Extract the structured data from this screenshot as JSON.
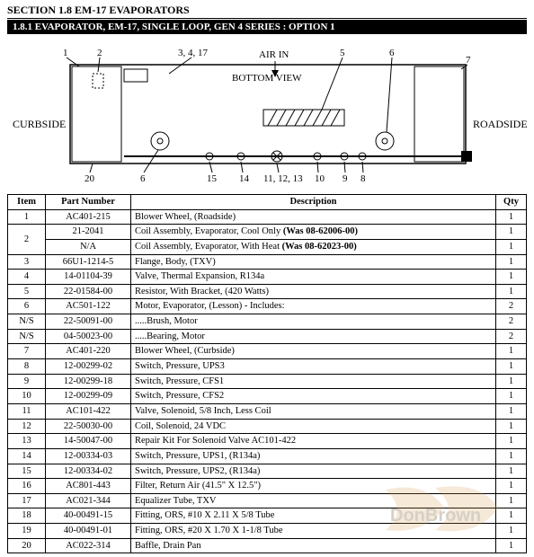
{
  "section_header": "SECTION 1.8 EM-17 EVAPORATORS",
  "subsection_header": "1.8.1    EVAPORATOR, EM-17, SINGLE LOOP, GEN 4 SERIES : OPTION 1",
  "diagram": {
    "label_air_in": "AIR IN",
    "label_bottom_view": "BOTTOM VIEW",
    "label_curbside": "CURBSIDE",
    "label_roadside": "ROADSIDE",
    "callout_1": "1",
    "callout_2": "2",
    "callout_3_4_17": "3, 4, 17",
    "callout_5": "5",
    "callout_6a": "6",
    "callout_6b": "6",
    "callout_7": "7",
    "callout_8": "8",
    "callout_9": "9",
    "callout_10": "10",
    "callout_11_12_13": "11, 12, 13",
    "callout_14": "14",
    "callout_15": "15",
    "callout_20": "20",
    "outline_color": "#000000",
    "hatch_color": "#000000",
    "bg_color": "#ffffff"
  },
  "table": {
    "headers": {
      "item": "Item",
      "part": "Part Number",
      "desc": "Description",
      "qty": "Qty"
    },
    "rows": [
      {
        "item": "1",
        "part": "AC401-215",
        "desc": "Blower Wheel, (Roadside)",
        "qty": "1",
        "rowspan_item": 1
      },
      {
        "item": "2",
        "part": "21-2041",
        "desc": "Coil Assembly, Evaporator, Cool Only (Was 08-62006-00)",
        "qty": "1",
        "rowspan_item": 2
      },
      {
        "item": "",
        "part": "N/A",
        "desc": "Coil Assembly, Evaporator, With Heat (Was 08-62023-00)",
        "qty": "1",
        "rowspan_item": 0
      },
      {
        "item": "3",
        "part": "66U1-1214-5",
        "desc": "Flange, Body, (TXV)",
        "qty": "1",
        "rowspan_item": 1
      },
      {
        "item": "4",
        "part": "14-01104-39",
        "desc": "Valve, Thermal Expansion, R134a",
        "qty": "1",
        "rowspan_item": 1
      },
      {
        "item": "5",
        "part": "22-01584-00",
        "desc": "Resistor, With Bracket, (420 Watts)",
        "qty": "1",
        "rowspan_item": 1
      },
      {
        "item": "6",
        "part": "AC501-122",
        "desc": "Motor, Evaporator, (Lesson) - Includes:",
        "qty": "2",
        "rowspan_item": 1
      },
      {
        "item": "N/S",
        "part": "22-50091-00",
        "desc": ".....Brush, Motor",
        "qty": "2",
        "rowspan_item": 1
      },
      {
        "item": "N/S",
        "part": "04-50023-00",
        "desc": ".....Bearing, Motor",
        "qty": "2",
        "rowspan_item": 1
      },
      {
        "item": "7",
        "part": "AC401-220",
        "desc": "Blower Wheel,  (Curbside)",
        "qty": "1",
        "rowspan_item": 1
      },
      {
        "item": "8",
        "part": "12-00299-02",
        "desc": "Switch, Pressure, UPS3",
        "qty": "1",
        "rowspan_item": 1
      },
      {
        "item": "9",
        "part": "12-00299-18",
        "desc": "Switch, Pressure, CFS1",
        "qty": "1",
        "rowspan_item": 1
      },
      {
        "item": "10",
        "part": "12-00299-09",
        "desc": "Switch, Pressure, CFS2",
        "qty": "1",
        "rowspan_item": 1
      },
      {
        "item": "11",
        "part": "AC101-422",
        "desc": "Valve, Solenoid, 5/8 Inch, Less Coil",
        "qty": "1",
        "rowspan_item": 1
      },
      {
        "item": "12",
        "part": "22-50030-00",
        "desc": "Coil, Solenoid, 24 VDC",
        "qty": "1",
        "rowspan_item": 1
      },
      {
        "item": "13",
        "part": "14-50047-00",
        "desc": "Repair Kit For Solenoid Valve AC101-422",
        "qty": "1",
        "rowspan_item": 1
      },
      {
        "item": "14",
        "part": "12-00334-03",
        "desc": "Switch, Pressure, UPS1, (R134a)",
        "qty": "1",
        "rowspan_item": 1
      },
      {
        "item": "15",
        "part": "12-00334-02",
        "desc": "Switch, Pressure, UPS2, (R134a)",
        "qty": "1",
        "rowspan_item": 1
      },
      {
        "item": "16",
        "part": "AC801-443",
        "desc": "Filter, Return Air (41.5\" X 12.5\")",
        "qty": "1",
        "rowspan_item": 1
      },
      {
        "item": "17",
        "part": "AC021-344",
        "desc": "Equalizer Tube, TXV",
        "qty": "1",
        "rowspan_item": 1
      },
      {
        "item": "18",
        "part": "40-00491-15",
        "desc": "Fitting, ORS, #10 X 2.11 X 5/8 Tube",
        "qty": "1",
        "rowspan_item": 1
      },
      {
        "item": "19",
        "part": "40-00491-01",
        "desc": "Fitting, ORS, #20 X 1.70 X 1-1/8 Tube",
        "qty": "1",
        "rowspan_item": 1
      },
      {
        "item": "20",
        "part": "AC022-314",
        "desc": "Baffle, Drain Pan",
        "qty": "1",
        "rowspan_item": 1
      }
    ]
  },
  "watermark": {
    "text": "DonBrown",
    "color": "#d99a4a",
    "text_color": "#bfa88a"
  }
}
